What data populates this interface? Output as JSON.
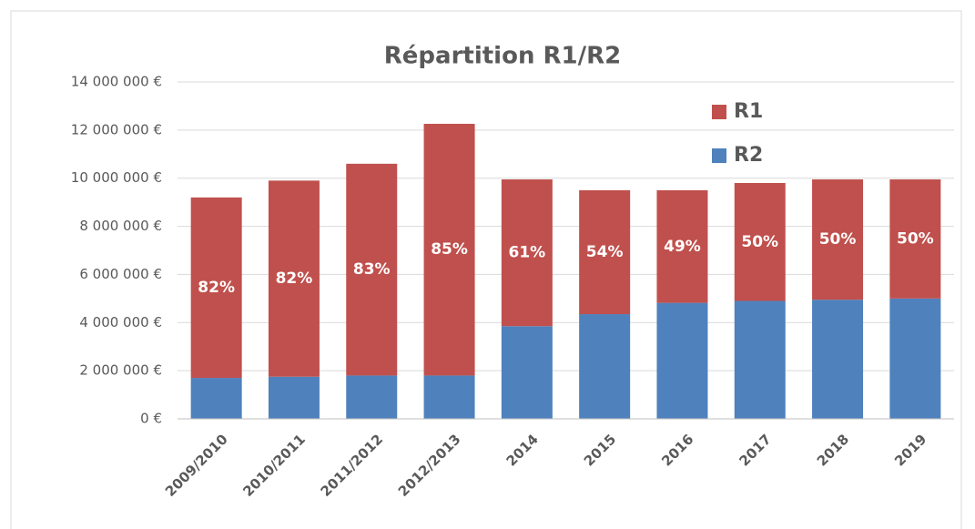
{
  "chart_data": {
    "type": "stacked_bar",
    "title": "Répartition R1/R2",
    "categories": [
      "2009/2010",
      "2010/2011",
      "2011/2012",
      "2012/2013",
      "2014",
      "2015",
      "2016",
      "2017",
      "2018",
      "2019"
    ],
    "series": [
      {
        "name": "R1",
        "color": "#c0504d",
        "values": [
          7500000,
          8150000,
          8800000,
          10460000,
          6100000,
          5150000,
          4680000,
          4900000,
          5000000,
          4950000
        ]
      },
      {
        "name": "R2",
        "color": "#4f81bd",
        "values": [
          1700000,
          1750000,
          1800000,
          1800000,
          3850000,
          4350000,
          4820000,
          4900000,
          4950000,
          5000000
        ]
      }
    ],
    "share_labels": [
      "82%",
      "82%",
      "83%",
      "85%",
      "61%",
      "54%",
      "49%",
      "50%",
      "50%",
      "50%"
    ],
    "stack_order": [
      "R2",
      "R1"
    ],
    "ylim": [
      0,
      14000000
    ],
    "yticks": [
      {
        "value": 0,
        "label": "0 €"
      },
      {
        "value": 2000000,
        "label": "2 000 000 €"
      },
      {
        "value": 4000000,
        "label": "4 000 000 €"
      },
      {
        "value": 6000000,
        "label": "6 000 000 €"
      },
      {
        "value": 8000000,
        "label": "8 000 000 €"
      },
      {
        "value": 10000000,
        "label": "10 000 000 €"
      },
      {
        "value": 12000000,
        "label": "12 000 000 €"
      },
      {
        "value": 14000000,
        "label": "14 000 000 €"
      }
    ],
    "grid": true,
    "legend": "upper right"
  }
}
